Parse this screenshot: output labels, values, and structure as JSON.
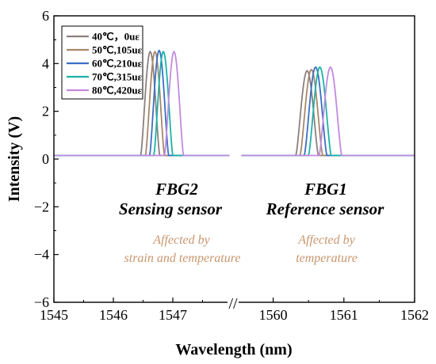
{
  "chart_data": {
    "type": "line",
    "xlabel": "Wavelength (nm)",
    "ylabel": "Intensity (V)",
    "ylim": [
      -6,
      6
    ],
    "yticks": [
      "6",
      "4",
      "2",
      "0",
      "−2",
      "−4",
      "−6"
    ],
    "xlim_segment1": [
      1545,
      1548
    ],
    "xlim_segment2": [
      1559.5,
      1562
    ],
    "xticks_segment1": [
      "1545",
      "1546",
      "1547"
    ],
    "xticks_segment2": [
      "1560",
      "1561",
      "1562"
    ],
    "axis_break": true,
    "baseline": 0.15,
    "legend_position": "top-left",
    "series": [
      {
        "name": "40℃，0uε",
        "color": "#8c7f7f",
        "fbg2_peak": [
          1546.62,
          4.5
        ],
        "fbg1_peak": [
          1560.48,
          3.7
        ]
      },
      {
        "name": "50℃,105uε",
        "color": "#a8876a",
        "fbg2_peak": [
          1546.7,
          4.5
        ],
        "fbg1_peak": [
          1560.54,
          3.75
        ]
      },
      {
        "name": "60℃,210uε",
        "color": "#3a6fc4",
        "fbg2_peak": [
          1546.77,
          4.55
        ],
        "fbg1_peak": [
          1560.6,
          3.85
        ]
      },
      {
        "name": "70℃,315uε",
        "color": "#1cb3a6",
        "fbg2_peak": [
          1546.84,
          4.5
        ],
        "fbg1_peak": [
          1560.66,
          3.85
        ]
      },
      {
        "name": "80℃,420uε",
        "color": "#c28ae0",
        "fbg2_peak": [
          1547.02,
          4.5
        ],
        "fbg1_peak": [
          1560.81,
          3.85
        ]
      }
    ],
    "annotations": {
      "fbg2_title": "FBG2",
      "fbg2_subtitle": "Sensing sensor",
      "fbg2_note_1": "Affected by",
      "fbg2_note_2": "strain and temperature",
      "fbg1_title": "FBG1",
      "fbg1_subtitle": "Reference sensor",
      "fbg1_note_1": "Affected by",
      "fbg1_note_2": "temperature"
    },
    "break_mark": "//"
  }
}
